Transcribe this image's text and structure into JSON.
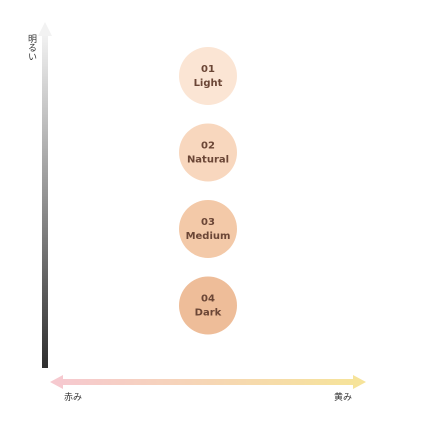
{
  "axes": {
    "vertical": {
      "label": "明るい"
    },
    "horizontal": {
      "left_label": "赤み",
      "right_label": "黄み"
    }
  },
  "shades": [
    {
      "number": "01",
      "name": "Light"
    },
    {
      "number": "02",
      "name": "Natural"
    },
    {
      "number": "03",
      "name": "Medium"
    },
    {
      "number": "04",
      "name": "Dark"
    }
  ]
}
